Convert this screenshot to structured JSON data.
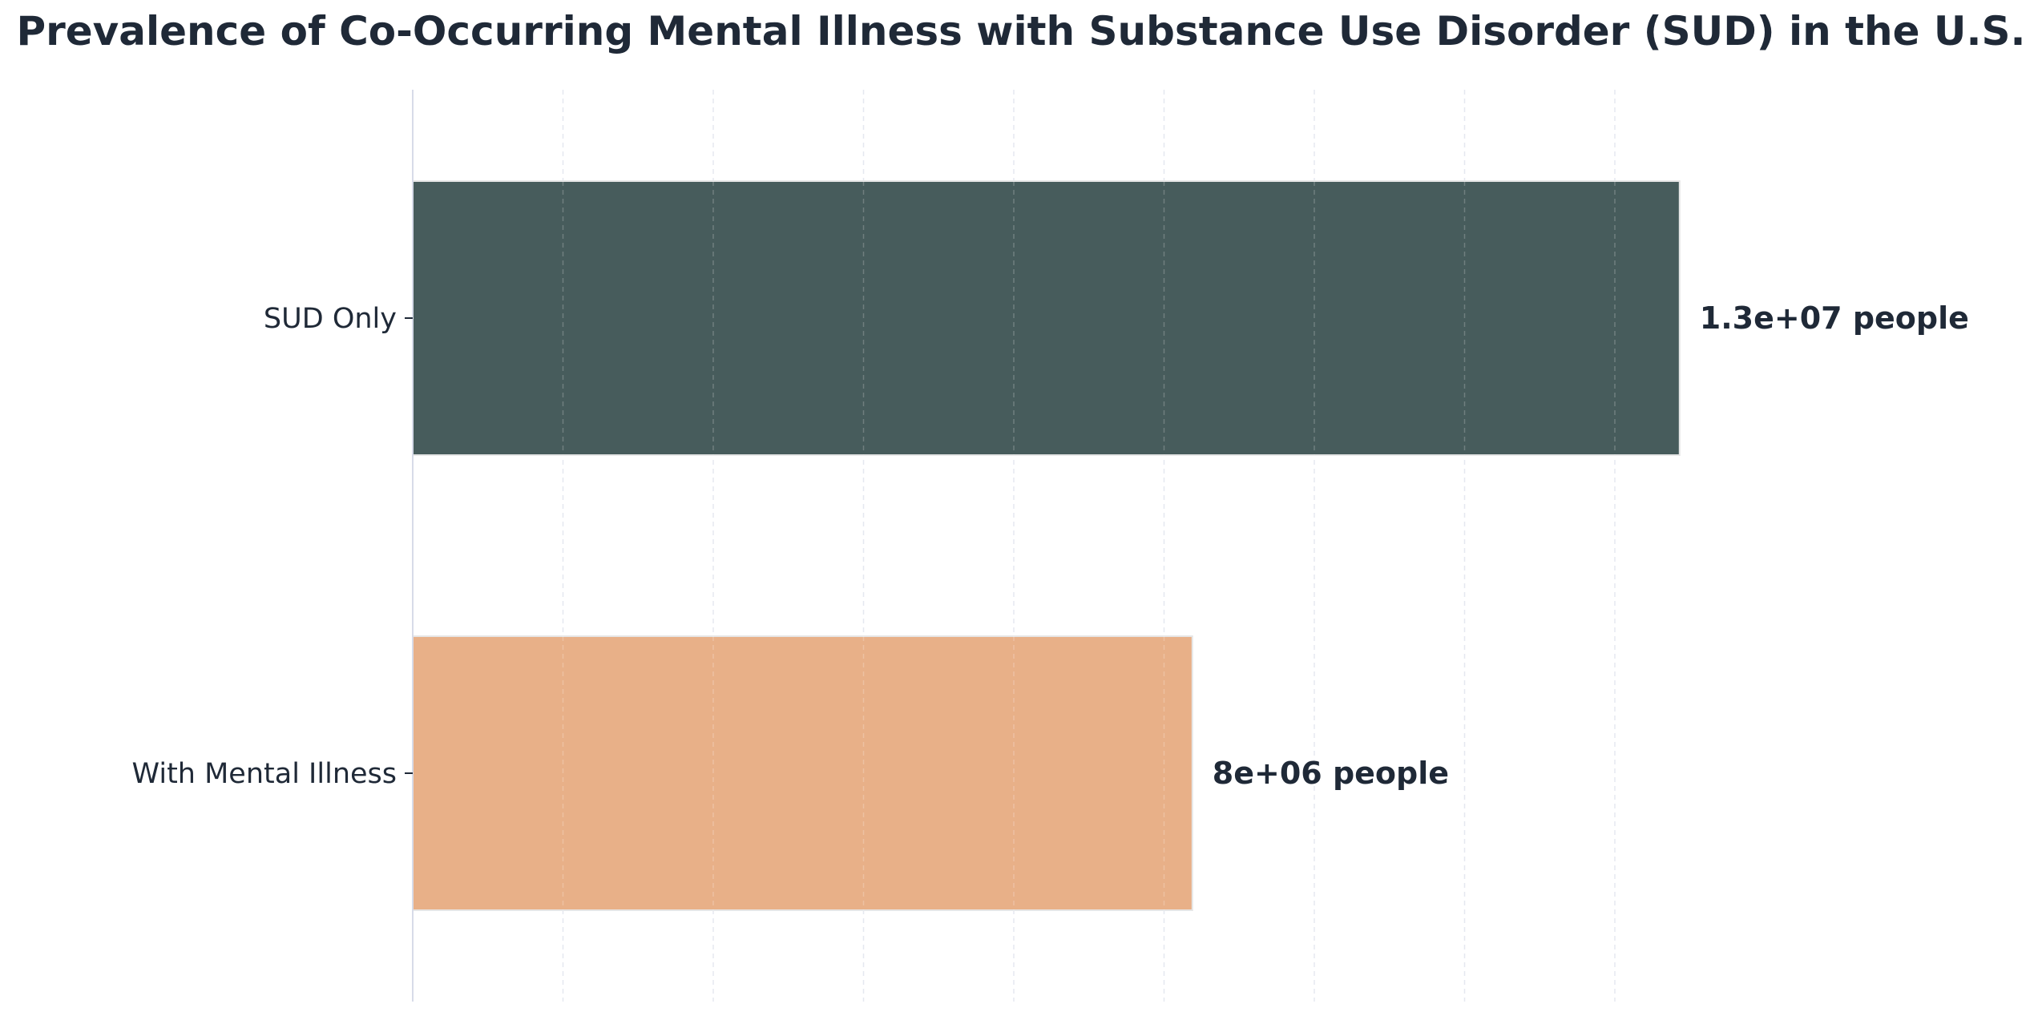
{
  "chart_data": {
    "type": "bar",
    "orientation": "horizontal",
    "title": "Prevalence of Co-Occurring Mental Illness with Substance Use Disorder (SUD) in the U.S.",
    "xlabel": "",
    "ylabel": "",
    "categories": [
      "SUD Only",
      "With Mental Illness"
    ],
    "values": [
      13000000,
      8000000
    ],
    "value_labels": [
      "1.3e+07 people",
      "8e+06 people"
    ],
    "colors": [
      "#475c5c",
      "#e8b088"
    ],
    "xlim": [
      0,
      20000000
    ],
    "grid": true,
    "legend": "none"
  }
}
